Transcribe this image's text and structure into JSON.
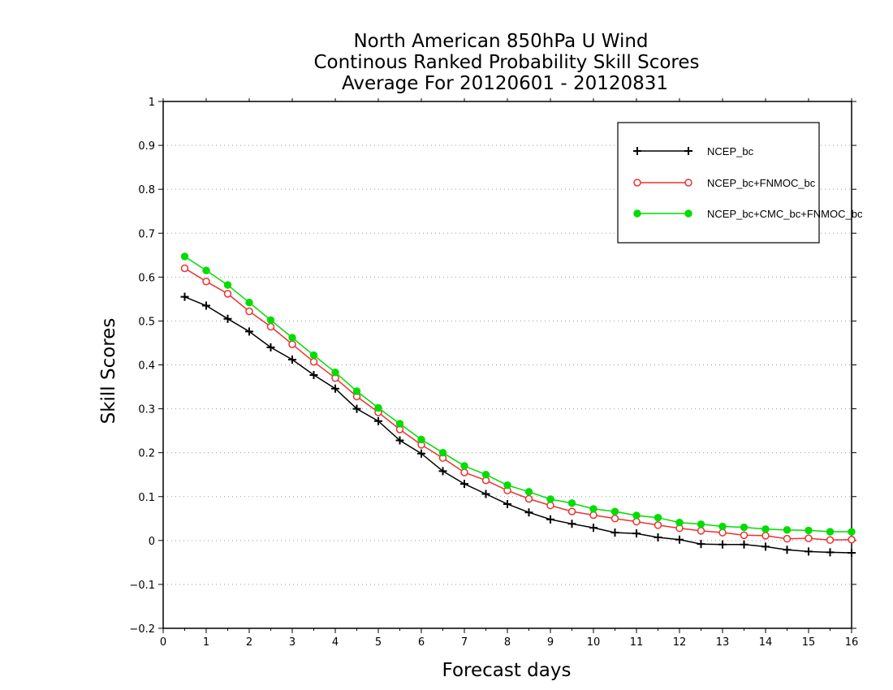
{
  "chart_data": {
    "type": "line",
    "title": [
      "North American 850hPa U Wind",
      "Continous Ranked Probability Skill Scores",
      "Average For 20120601 - 20120831"
    ],
    "xlabel": "Forecast days",
    "ylabel": "Skill Scores",
    "xlim": [
      0,
      16
    ],
    "ylim": [
      -0.2,
      1
    ],
    "xticks": [
      "0",
      "1",
      "2",
      "3",
      "4",
      "5",
      "6",
      "7",
      "8",
      "9",
      "10",
      "11",
      "12",
      "13",
      "14",
      "15",
      "16"
    ],
    "yticks": [
      "−0.2",
      "−0.1",
      "0",
      "0.1",
      "0.2",
      "0.3",
      "0.4",
      "0.5",
      "0.6",
      "0.7",
      "0.8",
      "0.9",
      "1"
    ],
    "grid": "horizontal dotted",
    "legend_position": "top-right",
    "x": [
      0.5,
      1,
      1.5,
      2,
      2.5,
      3,
      3.5,
      4,
      4.5,
      5,
      5.5,
      6,
      6.5,
      7,
      7.5,
      8,
      8.5,
      9,
      9.5,
      10,
      10.5,
      11,
      11.5,
      12,
      12.5,
      13,
      13.5,
      14,
      14.5,
      15,
      15.5,
      16
    ],
    "series": [
      {
        "name": "NCEP_bc",
        "color": "#000000",
        "marker": "plus",
        "values": [
          0.555,
          0.535,
          0.505,
          0.476,
          0.44,
          0.412,
          0.377,
          0.346,
          0.3,
          0.272,
          0.228,
          0.198,
          0.158,
          0.129,
          0.106,
          0.083,
          0.064,
          0.048,
          0.038,
          0.029,
          0.018,
          0.016,
          0.007,
          0.002,
          -0.008,
          -0.009,
          -0.009,
          -0.014,
          -0.021,
          -0.025,
          -0.027,
          -0.028
        ]
      },
      {
        "name": "NCEP_bc+FNMOC_bc",
        "color": "#ee3030",
        "marker": "open-circle",
        "values": [
          0.62,
          0.59,
          0.562,
          0.522,
          0.487,
          0.447,
          0.407,
          0.37,
          0.328,
          0.292,
          0.253,
          0.218,
          0.188,
          0.155,
          0.137,
          0.114,
          0.095,
          0.08,
          0.066,
          0.058,
          0.05,
          0.043,
          0.035,
          0.028,
          0.022,
          0.018,
          0.012,
          0.011,
          0.004,
          0.005,
          0.001,
          0.002
        ]
      },
      {
        "name": "NCEP_bc+CMC_bc+FNMOC_bc",
        "color": "#00dd00",
        "marker": "filled-circle",
        "values": [
          0.647,
          0.615,
          0.582,
          0.542,
          0.502,
          0.462,
          0.422,
          0.383,
          0.34,
          0.302,
          0.266,
          0.23,
          0.2,
          0.17,
          0.15,
          0.126,
          0.111,
          0.094,
          0.085,
          0.072,
          0.066,
          0.057,
          0.052,
          0.041,
          0.037,
          0.032,
          0.03,
          0.026,
          0.024,
          0.023,
          0.02,
          0.02
        ]
      }
    ]
  }
}
